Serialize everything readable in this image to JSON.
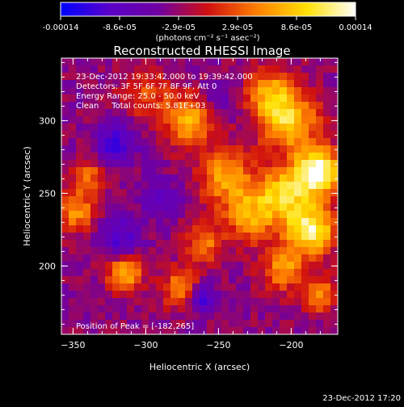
{
  "chart_data": {
    "type": "heatmap",
    "title": "Reconstructed RHESSI Image",
    "xlabel": "Heliocentric X (arcsec)",
    "ylabel": "Heliocentric Y (arcsec)",
    "x_ticks": [
      -350,
      -300,
      -250,
      -200
    ],
    "y_ticks": [
      200,
      250,
      300
    ],
    "xlim": [
      -358,
      -168
    ],
    "ylim": [
      153,
      343
    ],
    "colorbar": {
      "ticks": [
        "-0.00014",
        "-8.6e-05",
        "-2.9e-05",
        "2.9e-05",
        "8.6e-05",
        "0.00014"
      ],
      "range": [
        -0.00014,
        0.00014
      ],
      "unit_label": "(photons cm⁻² s⁻¹ asec⁻²)",
      "colormap": [
        "#0000ff",
        "#5a00c8",
        "#7000a0",
        "#d01010",
        "#ff8000",
        "#ffe000",
        "#ffffff"
      ]
    },
    "annotations": {
      "time_range": "23-Dec-2012 19:33:42.000 to 19:39:42.000",
      "detectors": "Detectors: 3F 5F 6F 7F 8F 9F, Att 0",
      "energy": "Energy Range: 25.0 - 50.0 keV",
      "clean": "Clean     Total counts: 5.81E+03",
      "peak": "Position of Peak = [-182,265]"
    },
    "peak_position": [
      -182,
      265
    ],
    "blobs": [
      {
        "x": -182,
        "y": 265,
        "r": 11,
        "amp": 1.15
      },
      {
        "x": -187,
        "y": 225,
        "r": 12,
        "amp": 1.0
      },
      {
        "x": -205,
        "y": 250,
        "r": 12,
        "amp": 0.75
      },
      {
        "x": -202,
        "y": 300,
        "r": 14,
        "amp": 0.8
      },
      {
        "x": -270,
        "y": 300,
        "r": 12,
        "amp": 0.7
      },
      {
        "x": -245,
        "y": 262,
        "r": 13,
        "amp": 0.6
      },
      {
        "x": -228,
        "y": 235,
        "r": 13,
        "amp": 0.6
      },
      {
        "x": -260,
        "y": 215,
        "r": 9,
        "amp": 0.5
      },
      {
        "x": -215,
        "y": 320,
        "r": 11,
        "amp": 0.55
      },
      {
        "x": -315,
        "y": 195,
        "r": 8,
        "amp": 0.75
      },
      {
        "x": -275,
        "y": 185,
        "r": 9,
        "amp": 0.6
      },
      {
        "x": -205,
        "y": 198,
        "r": 10,
        "amp": 0.6
      },
      {
        "x": -180,
        "y": 180,
        "r": 8,
        "amp": 0.55
      },
      {
        "x": -348,
        "y": 238,
        "r": 10,
        "amp": 0.55
      },
      {
        "x": -340,
        "y": 262,
        "r": 8,
        "amp": 0.45
      },
      {
        "x": -300,
        "y": 318,
        "r": 12,
        "amp": 0.35
      },
      {
        "x": -320,
        "y": 285,
        "r": 10,
        "amp": -0.5
      },
      {
        "x": -318,
        "y": 220,
        "r": 10,
        "amp": -0.45
      },
      {
        "x": -262,
        "y": 178,
        "r": 7,
        "amp": -0.55
      },
      {
        "x": -290,
        "y": 248,
        "r": 10,
        "amp": -0.3
      },
      {
        "x": -250,
        "y": 315,
        "r": 9,
        "amp": -0.25
      }
    ]
  },
  "footer_date": "23-Dec-2012 17:20"
}
